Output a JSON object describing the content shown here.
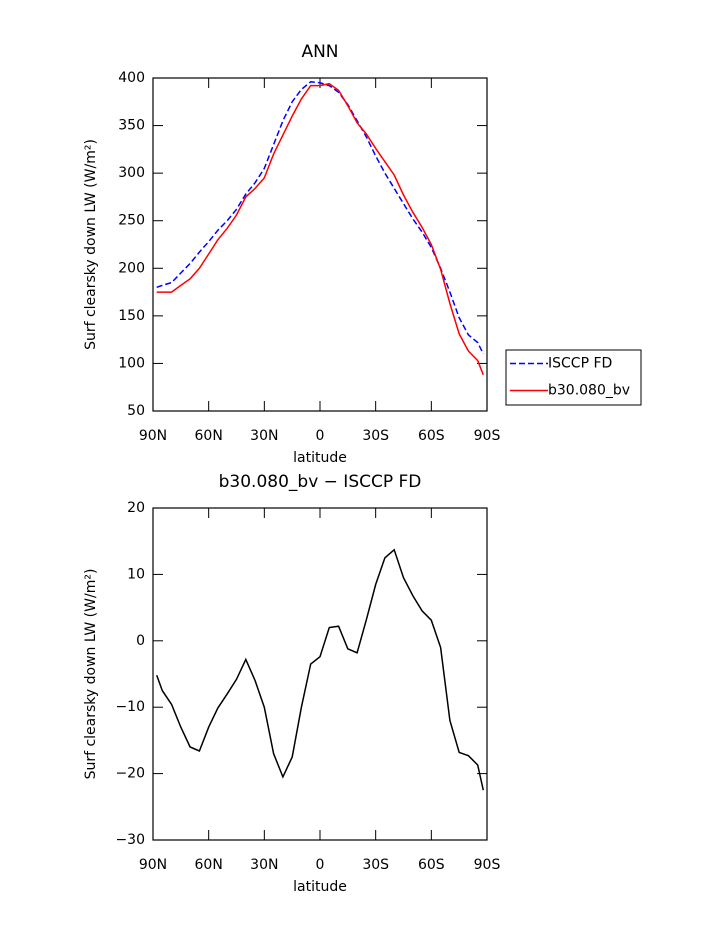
{
  "chart_data": [
    {
      "type": "line",
      "title": "ANN",
      "xlabel": "latitude",
      "ylabel": "Surf clearsky down LW (W/m²)",
      "x": [
        88,
        85,
        80,
        75,
        70,
        65,
        60,
        55,
        50,
        45,
        40,
        35,
        30,
        25,
        20,
        15,
        10,
        5,
        0,
        -5,
        -10,
        -15,
        -20,
        -25,
        -30,
        -35,
        -40,
        -45,
        -50,
        -55,
        -60,
        -65,
        -70,
        -75,
        -80,
        -85,
        -88
      ],
      "series": [
        {
          "name": "ISCCP FD",
          "color": "#0000ff",
          "linestyle": "dashed",
          "values": [
            180,
            182,
            185,
            195,
            205,
            217,
            228,
            240,
            250,
            262,
            278,
            290,
            305,
            330,
            355,
            375,
            388,
            396,
            395,
            392,
            385,
            372,
            355,
            338,
            318,
            300,
            284,
            268,
            252,
            238,
            222,
            200,
            175,
            148,
            130,
            122,
            110
          ]
        },
        {
          "name": "b30.080_bv",
          "color": "#ff0000",
          "linestyle": "solid",
          "values": [
            175,
            175,
            175,
            182,
            189,
            200,
            215,
            230,
            242,
            256,
            275,
            284,
            295,
            320,
            340,
            360,
            378,
            392,
            392,
            394,
            387,
            371,
            353,
            341,
            326,
            312,
            298,
            277,
            259,
            243,
            225,
            199,
            163,
            131,
            113,
            103,
            88
          ]
        }
      ],
      "xlim": [
        90,
        -90
      ],
      "xticks": [
        {
          "value": 90,
          "label": "90N"
        },
        {
          "value": 60,
          "label": "60N"
        },
        {
          "value": 30,
          "label": "30N"
        },
        0,
        {
          "value": -30,
          "label": "30S"
        },
        {
          "value": -60,
          "label": "60S"
        },
        {
          "value": -90,
          "label": "90S"
        }
      ],
      "ylim": [
        50,
        400
      ],
      "yticks": [
        50,
        100,
        150,
        200,
        250,
        300,
        350,
        400
      ],
      "legend": "outside-right"
    },
    {
      "type": "line",
      "title": "b30.080_bv − ISCCP FD",
      "xlabel": "latitude",
      "ylabel": "Surf clearsky down LW (W/m²)",
      "x": [
        88,
        85,
        80,
        75,
        70,
        65,
        60,
        55,
        50,
        45,
        40,
        35,
        30,
        25,
        20,
        15,
        10,
        5,
        0,
        -5,
        -10,
        -15,
        -20,
        -25,
        -30,
        -35,
        -40,
        -45,
        -50,
        -55,
        -60,
        -65,
        -70,
        -75,
        -80,
        -85,
        -88
      ],
      "color": "#000000",
      "values": [
        -5.2,
        -7.5,
        -9.6,
        -13,
        -16,
        -16.6,
        -13,
        -10.1,
        -8,
        -5.8,
        -2.8,
        -6,
        -10,
        -17,
        -20.5,
        -17.5,
        -10,
        -3.5,
        -2.4,
        2,
        2.2,
        -1.2,
        -1.8,
        3.2,
        8.5,
        12.5,
        13.7,
        9.5,
        6.8,
        4.5,
        3.1,
        -1,
        -12,
        -16.8,
        -17.3,
        -18.7,
        -22.5
      ],
      "xlim": [
        90,
        -90
      ],
      "xticks": [
        {
          "value": 90,
          "label": "90N"
        },
        {
          "value": 60,
          "label": "60N"
        },
        {
          "value": 30,
          "label": "30N"
        },
        0,
        {
          "value": -30,
          "label": "30S"
        },
        {
          "value": -60,
          "label": "60S"
        },
        {
          "value": -90,
          "label": "90S"
        }
      ],
      "ylim": [
        -30,
        20
      ],
      "yticks": [
        {
          "value": -30,
          "label": "−30"
        },
        {
          "value": -20,
          "label": "−20"
        },
        {
          "value": -10,
          "label": "−10"
        },
        0,
        10,
        20
      ]
    }
  ]
}
